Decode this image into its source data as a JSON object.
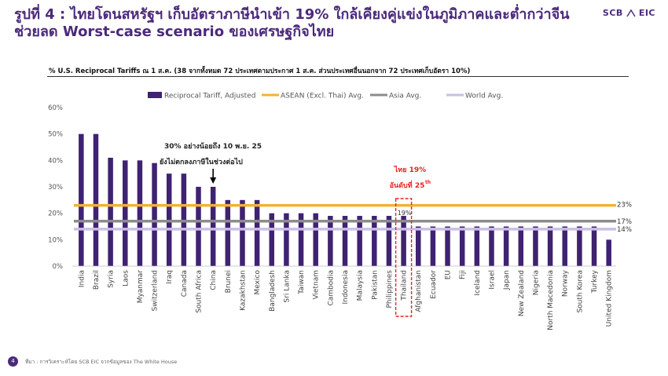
{
  "header": {
    "title_line1": "รูปที่ 4 : ไทยโดนสหรัฐฯ เก็บอัตราภาษีนำเข้า 19% ใกล้เคียงคู่แข่งในภูมิภาคและต่ำกว่าจีน",
    "title_line2": "ช่วยลด Worst-case scenario ของเศรษฐกิจไทย",
    "logo_text": "SCB",
    "logo_text_2": "EIC"
  },
  "subtitle": "% U.S. Reciprocal Tariffs ณ 1 ส.ค. (38 จากทั้งหมด 72 ประเทศตามประกาศ 1 ส.ค. ส่วนประเทศอื่นนอกจาก 72 ประเทศเก็บอัตรา 10%)",
  "footer": {
    "page_number": "4",
    "source": "ที่มา : การวิเคราะห์โดย SCB EIC จากข้อมูลของ The White House"
  },
  "chart_data": {
    "type": "bar",
    "categories": [
      "India",
      "Brazil",
      "Syria",
      "Laos",
      "Myanmar",
      "Switzerland",
      "Iraq",
      "Canada",
      "South Africa",
      "China",
      "Brunei",
      "Kazakhstan",
      "Mexico",
      "Bangladesh",
      "Sri Lanka",
      "Taiwan",
      "Vietnam",
      "Cambodia",
      "Indonesia",
      "Malaysia",
      "Pakistan",
      "Philippines",
      "Thailand",
      "Afghanistan",
      "Ecuador",
      "EU",
      "Fiji",
      "Iceland",
      "Israel",
      "Japan",
      "New Zealand",
      "Nigeria",
      "North Macedonia",
      "Norway",
      "South Korea",
      "Turkey",
      "United Kingdom"
    ],
    "series": [
      {
        "name": "Reciprocal Tariff, Adjusted",
        "type": "bar",
        "color": "#3f2272",
        "values": [
          50,
          50,
          41,
          40,
          40,
          39,
          35,
          35,
          30,
          30,
          25,
          25,
          25,
          20,
          20,
          20,
          20,
          19,
          19,
          19,
          19,
          19,
          19,
          15,
          15,
          15,
          15,
          15,
          15,
          15,
          15,
          15,
          15,
          15,
          15,
          15,
          10
        ]
      },
      {
        "name": "ASEAN (Excl. Thai) Avg.",
        "type": "line",
        "color": "#f0b335",
        "value": 23,
        "label": "23%"
      },
      {
        "name": "Asia Avg.",
        "type": "line",
        "color": "#8c8c8c",
        "value": 17,
        "label": "17%"
      },
      {
        "name": "World Avg.",
        "type": "line",
        "color": "#c9bfe6",
        "value": 14,
        "label": "14%"
      }
    ],
    "ylim": [
      0,
      60
    ],
    "yticks": [
      "0%",
      "10%",
      "20%",
      "30%",
      "40%",
      "50%",
      "60%"
    ],
    "legend_position": "top",
    "grid": false,
    "annotations": {
      "china_line1": "30% อย่างน้อยถึง 10 พ.ย. 25",
      "china_line2": "ยังไม่ตกลงภาษีในช่วงต่อไป",
      "thai_line1": "ไทย 19%",
      "thai_line2": "อันดับที่ 25",
      "thai_line2_sup": "th",
      "thai_bar_label": "19%",
      "highlight_color": "#e8231e"
    }
  }
}
